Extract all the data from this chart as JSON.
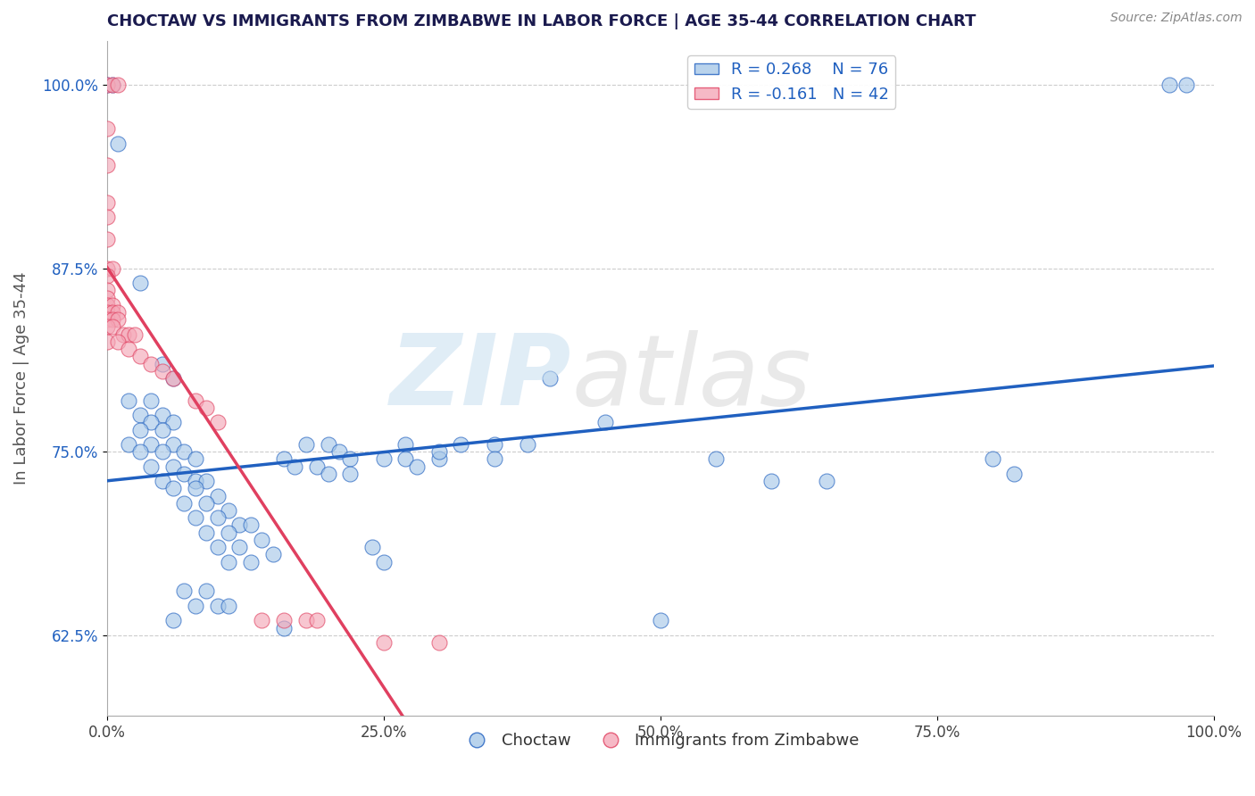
{
  "title": "CHOCTAW VS IMMIGRANTS FROM ZIMBABWE IN LABOR FORCE | AGE 35-44 CORRELATION CHART",
  "source": "Source: ZipAtlas.com",
  "ylabel": "In Labor Force | Age 35-44",
  "xlim": [
    0.0,
    1.0
  ],
  "ylim": [
    0.57,
    1.03
  ],
  "xticks": [
    0.0,
    0.25,
    0.5,
    0.75,
    1.0
  ],
  "xticklabels": [
    "0.0%",
    "25.0%",
    "50.0%",
    "75.0%",
    "100.0%"
  ],
  "yticks": [
    0.625,
    0.75,
    0.875,
    1.0
  ],
  "yticklabels": [
    "62.5%",
    "75.0%",
    "87.5%",
    "100.0%"
  ],
  "blue_color": "#a8c8e8",
  "pink_color": "#f4a8b8",
  "line_blue": "#2060c0",
  "line_pink": "#e04060",
  "blue_scatter": [
    [
      0.0,
      1.0
    ],
    [
      0.005,
      1.0
    ],
    [
      0.01,
      0.96
    ],
    [
      0.03,
      0.865
    ],
    [
      0.05,
      0.81
    ],
    [
      0.06,
      0.8
    ],
    [
      0.02,
      0.785
    ],
    [
      0.04,
      0.785
    ],
    [
      0.03,
      0.775
    ],
    [
      0.05,
      0.775
    ],
    [
      0.04,
      0.77
    ],
    [
      0.06,
      0.77
    ],
    [
      0.03,
      0.765
    ],
    [
      0.05,
      0.765
    ],
    [
      0.02,
      0.755
    ],
    [
      0.04,
      0.755
    ],
    [
      0.06,
      0.755
    ],
    [
      0.03,
      0.75
    ],
    [
      0.05,
      0.75
    ],
    [
      0.07,
      0.75
    ],
    [
      0.08,
      0.745
    ],
    [
      0.04,
      0.74
    ],
    [
      0.06,
      0.74
    ],
    [
      0.07,
      0.735
    ],
    [
      0.05,
      0.73
    ],
    [
      0.08,
      0.73
    ],
    [
      0.09,
      0.73
    ],
    [
      0.06,
      0.725
    ],
    [
      0.08,
      0.725
    ],
    [
      0.1,
      0.72
    ],
    [
      0.07,
      0.715
    ],
    [
      0.09,
      0.715
    ],
    [
      0.11,
      0.71
    ],
    [
      0.08,
      0.705
    ],
    [
      0.1,
      0.705
    ],
    [
      0.12,
      0.7
    ],
    [
      0.13,
      0.7
    ],
    [
      0.09,
      0.695
    ],
    [
      0.11,
      0.695
    ],
    [
      0.14,
      0.69
    ],
    [
      0.1,
      0.685
    ],
    [
      0.12,
      0.685
    ],
    [
      0.15,
      0.68
    ],
    [
      0.11,
      0.675
    ],
    [
      0.13,
      0.675
    ],
    [
      0.07,
      0.655
    ],
    [
      0.09,
      0.655
    ],
    [
      0.08,
      0.645
    ],
    [
      0.1,
      0.645
    ],
    [
      0.11,
      0.645
    ],
    [
      0.06,
      0.635
    ],
    [
      0.16,
      0.745
    ],
    [
      0.18,
      0.755
    ],
    [
      0.17,
      0.74
    ],
    [
      0.19,
      0.74
    ],
    [
      0.2,
      0.755
    ],
    [
      0.21,
      0.75
    ],
    [
      0.22,
      0.745
    ],
    [
      0.22,
      0.735
    ],
    [
      0.2,
      0.735
    ],
    [
      0.25,
      0.745
    ],
    [
      0.27,
      0.755
    ],
    [
      0.27,
      0.745
    ],
    [
      0.28,
      0.74
    ],
    [
      0.3,
      0.745
    ],
    [
      0.3,
      0.75
    ],
    [
      0.32,
      0.755
    ],
    [
      0.16,
      0.63
    ],
    [
      0.24,
      0.685
    ],
    [
      0.25,
      0.675
    ],
    [
      0.35,
      0.755
    ],
    [
      0.38,
      0.755
    ],
    [
      0.35,
      0.745
    ],
    [
      0.4,
      0.8
    ],
    [
      0.45,
      0.77
    ],
    [
      0.5,
      0.635
    ],
    [
      0.55,
      0.745
    ],
    [
      0.6,
      0.73
    ],
    [
      0.65,
      0.73
    ],
    [
      0.8,
      0.745
    ],
    [
      0.82,
      0.735
    ],
    [
      0.96,
      1.0
    ],
    [
      0.975,
      1.0
    ]
  ],
  "pink_scatter": [
    [
      0.0,
      1.0
    ],
    [
      0.005,
      1.0
    ],
    [
      0.01,
      1.0
    ],
    [
      0.0,
      0.97
    ],
    [
      0.0,
      0.945
    ],
    [
      0.0,
      0.92
    ],
    [
      0.0,
      0.91
    ],
    [
      0.0,
      0.895
    ],
    [
      0.0,
      0.875
    ],
    [
      0.005,
      0.875
    ],
    [
      0.0,
      0.87
    ],
    [
      0.0,
      0.86
    ],
    [
      0.0,
      0.855
    ],
    [
      0.0,
      0.85
    ],
    [
      0.005,
      0.85
    ],
    [
      0.0,
      0.845
    ],
    [
      0.005,
      0.845
    ],
    [
      0.01,
      0.845
    ],
    [
      0.0,
      0.84
    ],
    [
      0.005,
      0.84
    ],
    [
      0.01,
      0.84
    ],
    [
      0.0,
      0.835
    ],
    [
      0.005,
      0.835
    ],
    [
      0.015,
      0.83
    ],
    [
      0.02,
      0.83
    ],
    [
      0.025,
      0.83
    ],
    [
      0.0,
      0.825
    ],
    [
      0.01,
      0.825
    ],
    [
      0.02,
      0.82
    ],
    [
      0.03,
      0.815
    ],
    [
      0.04,
      0.81
    ],
    [
      0.05,
      0.805
    ],
    [
      0.06,
      0.8
    ],
    [
      0.08,
      0.785
    ],
    [
      0.09,
      0.78
    ],
    [
      0.1,
      0.77
    ],
    [
      0.14,
      0.635
    ],
    [
      0.16,
      0.635
    ],
    [
      0.18,
      0.635
    ],
    [
      0.19,
      0.635
    ],
    [
      0.25,
      0.62
    ],
    [
      0.3,
      0.62
    ]
  ]
}
